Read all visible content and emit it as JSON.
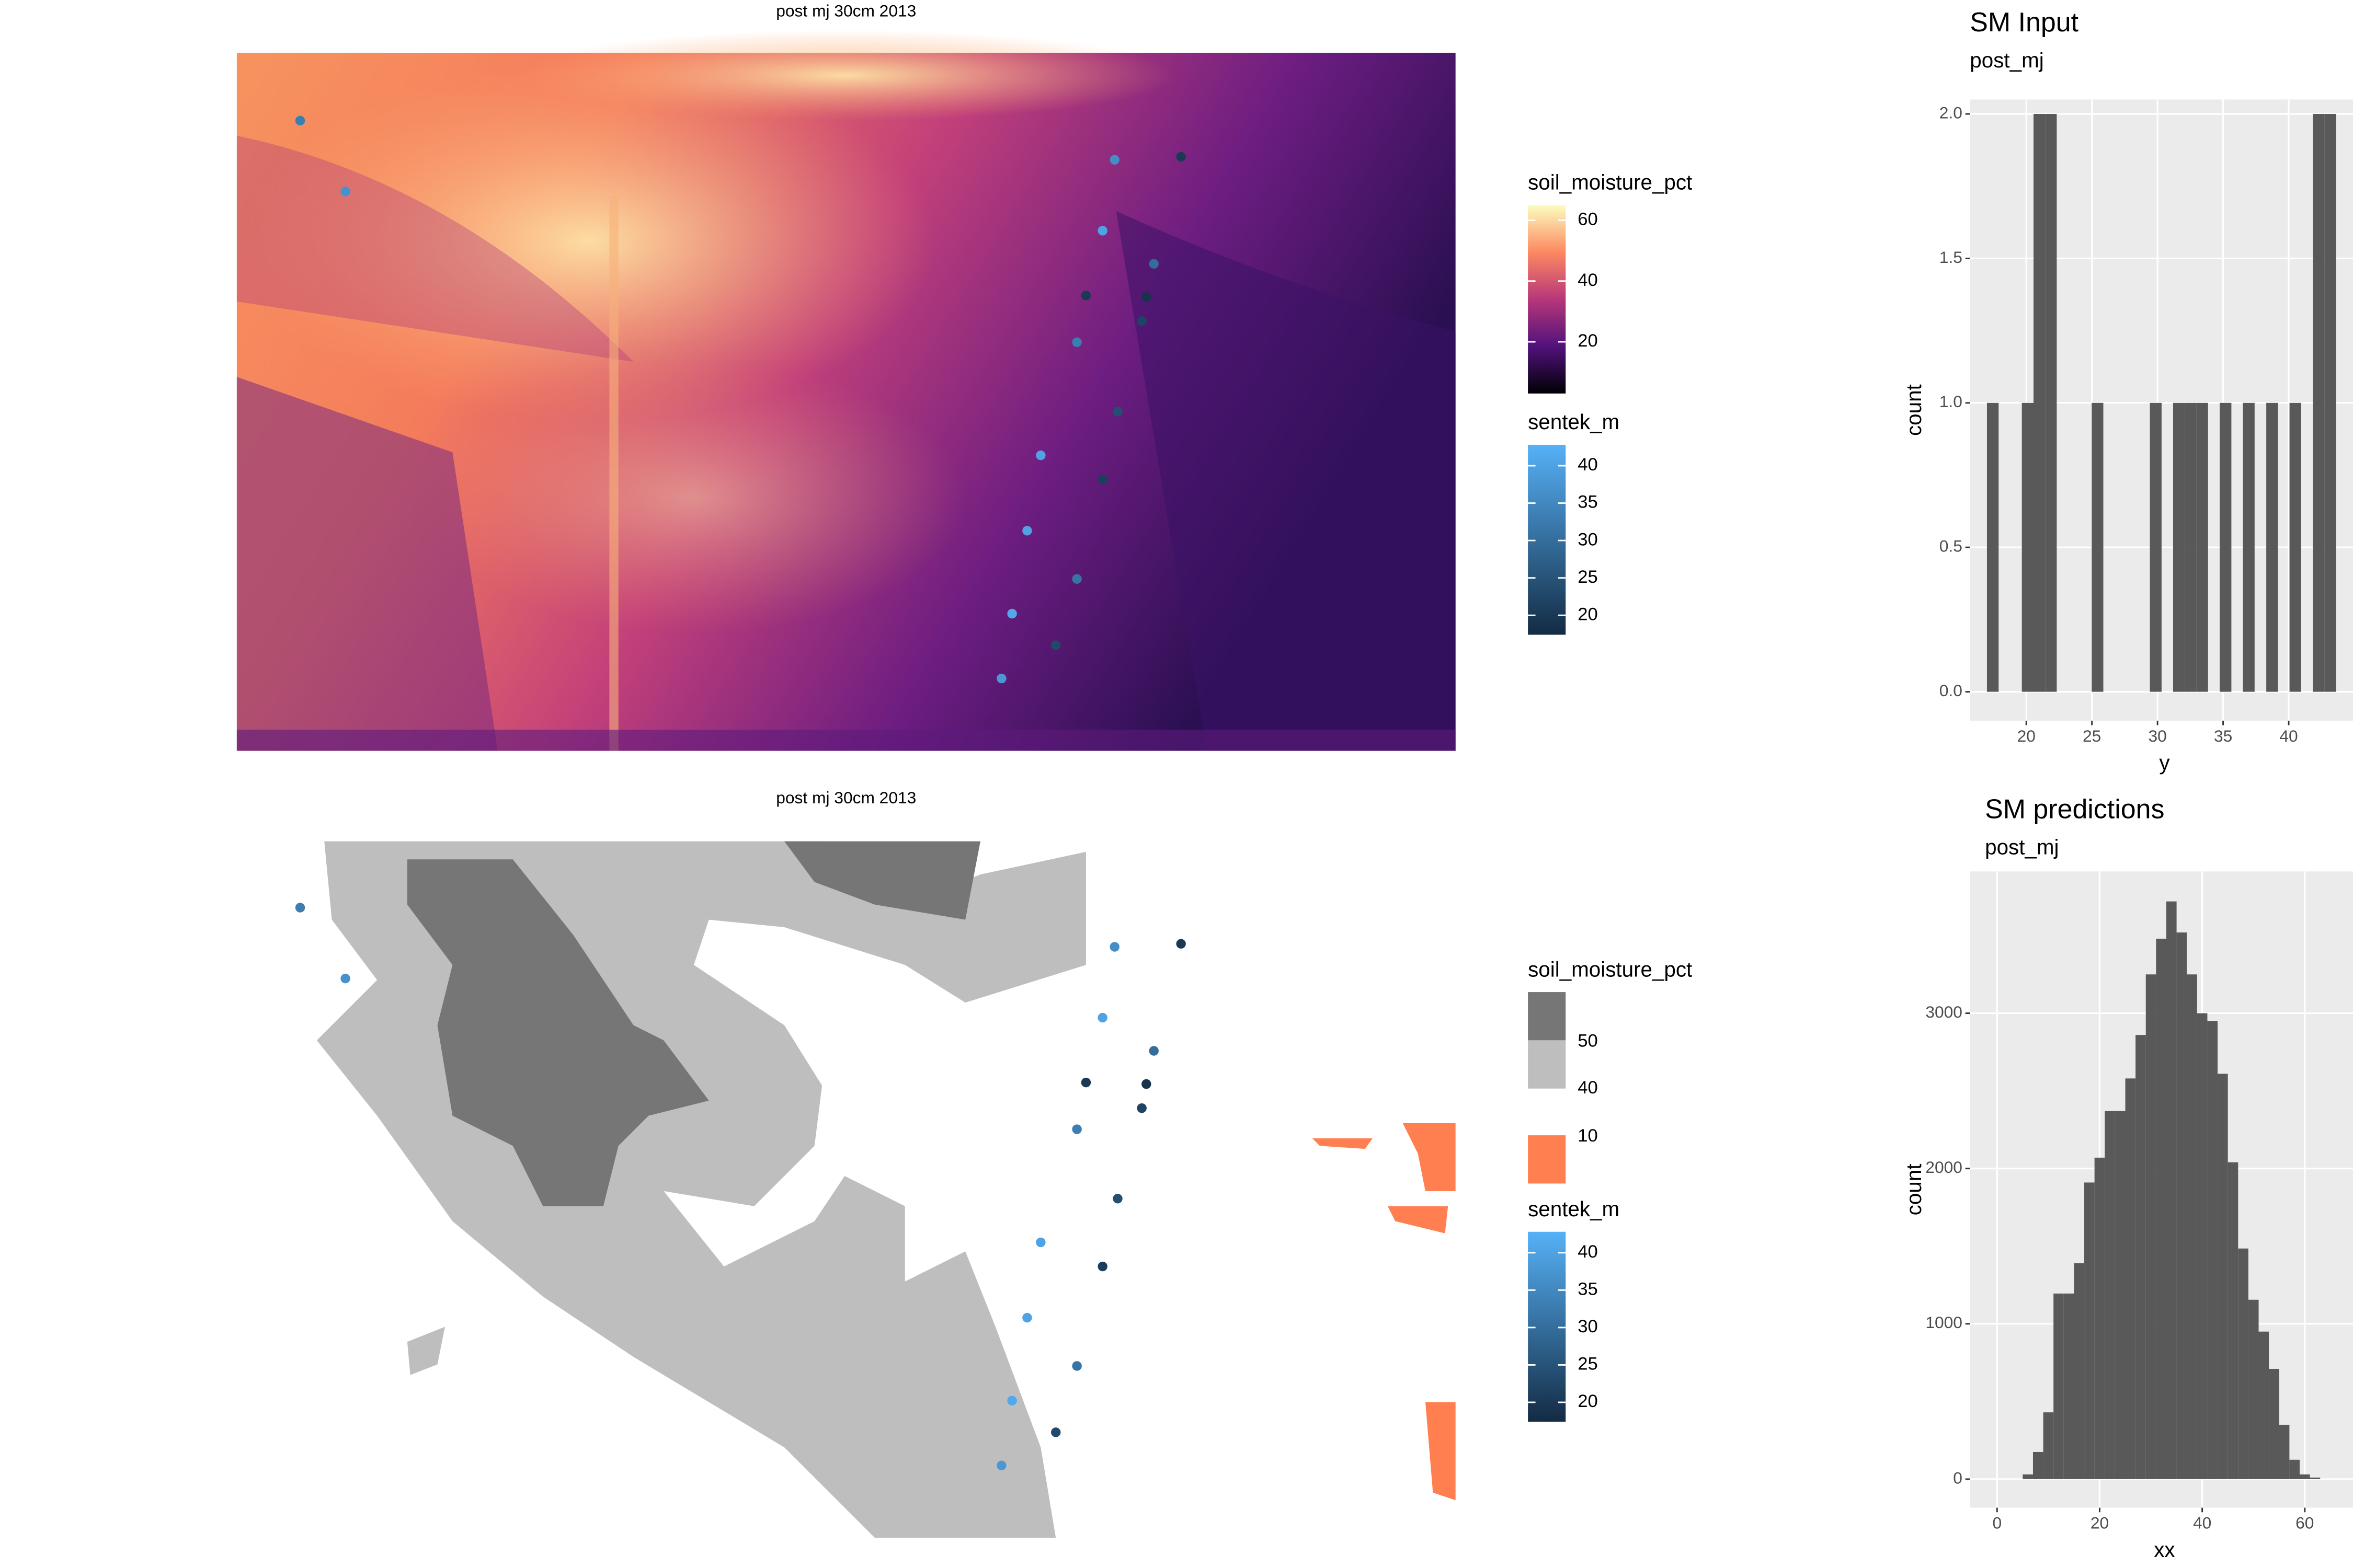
{
  "chart_data": [
    {
      "type": "map",
      "title": "post  mj  30cm  2013",
      "sentek_values": [
        33,
        37,
        36,
        20,
        40,
        30,
        20,
        19,
        22,
        33,
        24,
        40,
        21,
        40,
        31,
        41,
        23,
        38
      ],
      "legends": [
        {
          "title": "soil_moisture_pct",
          "kind": "colorbar",
          "colors": [
            "#000004",
            "#51127c",
            "#b73779",
            "#fc8961",
            "#fcfdbf"
          ],
          "limits": [
            3,
            65
          ],
          "ticks": [
            20,
            40,
            60
          ]
        },
        {
          "title": "sentek_m",
          "kind": "colorbar",
          "colors": [
            "#132B43",
            "#56B1F7"
          ],
          "limits": [
            17.4,
            42.8
          ],
          "ticks": [
            20,
            25,
            30,
            35,
            40
          ]
        }
      ]
    },
    {
      "type": "map",
      "title": "post  mj  30cm  2013",
      "sentek_values": [
        33,
        37,
        36,
        20,
        40,
        30,
        20,
        19,
        22,
        33,
        24,
        40,
        21,
        40,
        31,
        41,
        23,
        38
      ],
      "legends": [
        {
          "title": "soil_moisture_pct",
          "kind": "bins",
          "labels": [
            50,
            40,
            10
          ],
          "colors": [
            "#767676",
            "#bebebe",
            "#ff7f50"
          ]
        },
        {
          "title": "sentek_m",
          "kind": "colorbar",
          "colors": [
            "#132B43",
            "#56B1F7"
          ],
          "limits": [
            17.4,
            42.8
          ],
          "ticks": [
            20,
            25,
            30,
            35,
            40
          ]
        }
      ]
    },
    {
      "type": "histogram",
      "title": "SM Input",
      "subtitle": "post_mj",
      "x_label": "y",
      "y_label": "count",
      "color": "#595959",
      "bins": [
        17.0,
        17.89,
        18.77,
        19.66,
        20.55,
        21.44,
        22.32,
        23.21,
        24.1,
        24.98,
        25.87,
        26.76,
        27.64,
        28.53,
        29.42,
        30.31,
        31.19,
        32.08,
        32.97,
        33.85,
        34.74,
        35.63,
        36.51,
        37.4,
        38.29,
        39.18,
        40.06,
        40.95,
        41.84,
        42.72,
        43.61
      ],
      "counts": [
        1,
        0,
        0,
        1,
        2,
        2,
        0,
        0,
        0,
        1,
        0,
        0,
        0,
        0,
        1,
        0,
        1,
        1,
        1,
        0,
        1,
        0,
        1,
        0,
        1,
        0,
        1,
        0,
        2,
        2
      ],
      "xlim": [
        15.7,
        44.9
      ],
      "ylim": [
        -0.1,
        2.05
      ],
      "xticks": [
        20,
        25,
        30,
        35,
        40
      ],
      "yticks": [
        {
          "value": 0,
          "label": "0.0"
        },
        {
          "value": 0.5,
          "label": "0.5"
        },
        {
          "value": 1,
          "label": "1.0"
        },
        {
          "value": 1.5,
          "label": "1.5"
        },
        {
          "value": 2,
          "label": "2.0"
        }
      ],
      "grid": true
    },
    {
      "type": "histogram",
      "title": "SM predictions",
      "subtitle": "post_mj",
      "x_label": "xx",
      "y_label": "count",
      "color": "#595959",
      "bins": [
        5,
        7,
        9,
        11,
        13,
        15,
        17,
        19,
        21,
        23,
        25,
        27,
        29,
        31,
        33,
        35,
        37,
        39,
        41,
        43,
        45,
        47,
        49,
        51,
        53,
        55,
        57,
        59,
        61,
        63
      ],
      "counts": [
        30,
        175,
        430,
        1195,
        1195,
        1390,
        1910,
        2070,
        2370,
        2370,
        2580,
        2860,
        3250,
        3480,
        3720,
        3520,
        3250,
        3000,
        2950,
        2610,
        2040,
        1485,
        1155,
        950,
        710,
        350,
        125,
        30,
        10
      ],
      "xlim": [
        -5.3,
        69.4
      ],
      "ylim": [
        -184,
        3913
      ],
      "xticks": [
        0,
        20,
        40,
        60
      ],
      "yticks": [
        0,
        1000,
        2000,
        3000
      ],
      "grid": true
    }
  ]
}
